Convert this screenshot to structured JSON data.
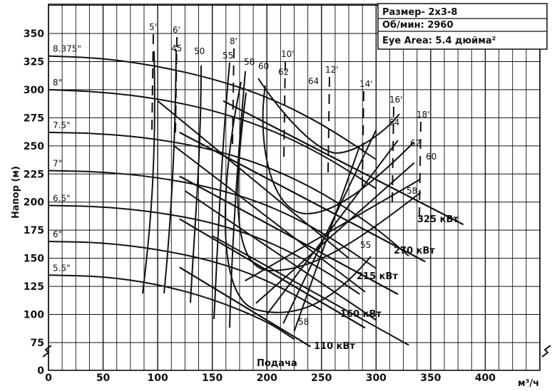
{
  "chart_data": {
    "type": "line",
    "title": "",
    "xlabel": "м³/ч",
    "ylabel": "Напор (м)",
    "xlim": [
      0,
      450
    ],
    "ylim": [
      0,
      375
    ],
    "x_ticks": [
      "0",
      "50",
      "100",
      "150",
      "200",
      "250",
      "300",
      "350",
      "400"
    ],
    "y_ticks": [
      "0",
      "75",
      "100",
      "125",
      "150",
      "175",
      "200",
      "225",
      "250",
      "275",
      "300",
      "325",
      "350"
    ],
    "info_box": [
      "Размер- 2x3-8",
      "Об/мин: 2960",
      "Eye Area:  5.4 дюйма²"
    ],
    "flow_label": "Подача",
    "impeller_curves": [
      {
        "name": "8.375\"",
        "x": [
          0,
          50,
          100,
          150,
          200,
          250,
          300
        ],
        "y": [
          330,
          328,
          321,
          310,
          294,
          270,
          238
        ]
      },
      {
        "name": "8\"",
        "x": [
          0,
          50,
          100,
          150,
          200,
          250,
          300
        ],
        "y": [
          300,
          298,
          292,
          282,
          266,
          243,
          212
        ]
      },
      {
        "name": "7.5\"",
        "x": [
          0,
          50,
          100,
          150,
          200,
          250,
          300,
          330
        ],
        "y": [
          262,
          261,
          256,
          247,
          232,
          209,
          177,
          152
        ]
      },
      {
        "name": "7\"",
        "x": [
          0,
          50,
          100,
          150,
          200,
          250,
          300
        ],
        "y": [
          228,
          227,
          222,
          213,
          198,
          174,
          141
        ]
      },
      {
        "name": "6.5\"",
        "x": [
          0,
          50,
          100,
          150,
          200,
          250,
          285
        ],
        "y": [
          197,
          196,
          191,
          182,
          166,
          141,
          118
        ]
      },
      {
        "name": "6\"",
        "x": [
          0,
          50,
          100,
          150,
          200,
          250
        ],
        "y": [
          165,
          164,
          158,
          148,
          131,
          104
        ]
      },
      {
        "name": "5.5\"",
        "x": [
          0,
          50,
          100,
          150,
          200,
          225
        ],
        "y": [
          135,
          134,
          127,
          114,
          94,
          78
        ]
      }
    ],
    "efficiency_labels": [
      "45",
      "50",
      "55",
      "58",
      "60",
      "62",
      "64",
      "64",
      "62",
      "60",
      "58",
      "55",
      "58"
    ],
    "npsh_labels": [
      "5'",
      "6'",
      "8'",
      "10'",
      "12'",
      "14'",
      "16'",
      "18'"
    ],
    "power_lines": [
      {
        "name": "110 кВт",
        "x": [
          120,
          240
        ],
        "y": [
          142,
          64
        ]
      },
      {
        "name": "160 кВт",
        "x": [
          120,
          290
        ],
        "y": [
          185,
          88
        ]
      },
      {
        "name": "215 кВт",
        "x": [
          120,
          320
        ],
        "y": [
          223,
          118
        ]
      },
      {
        "name": "270 кВт",
        "x": [
          120,
          345
        ],
        "y": [
          262,
          147
        ]
      },
      {
        "name": "325 кВт",
        "x": [
          160,
          380
        ],
        "y": [
          290,
          180
        ]
      }
    ]
  }
}
